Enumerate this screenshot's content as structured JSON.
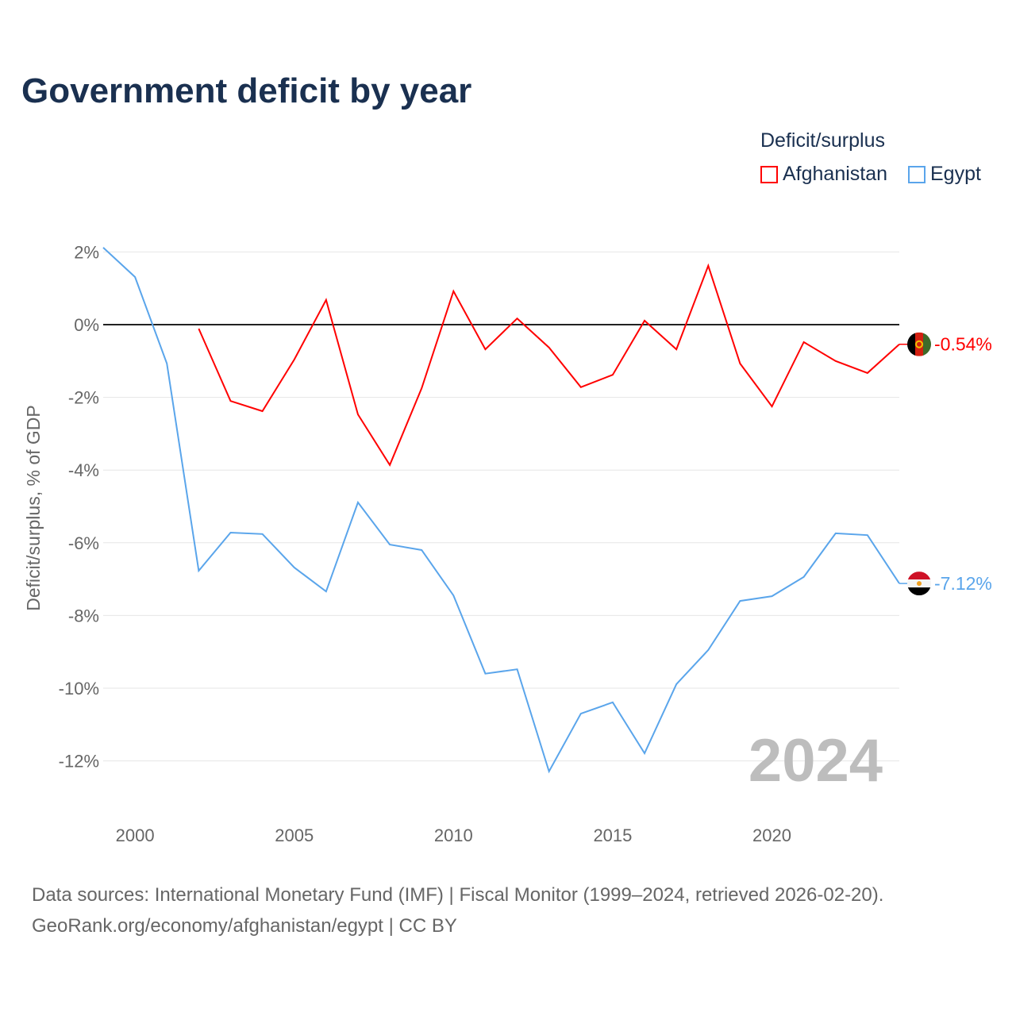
{
  "title": "Government deficit by year",
  "legend": {
    "title": "Deficit/surplus",
    "items": [
      {
        "label": "Afghanistan",
        "color": "#ff0000"
      },
      {
        "label": "Egypt",
        "color": "#5aa5eb"
      }
    ]
  },
  "source": {
    "line1": "Data sources: International Monetary Fund (IMF) | Fiscal Monitor (1999–2024, retrieved 2026-02-20).",
    "line2": "GeoRank.org/economy/afghanistan/egypt | CC BY"
  },
  "chart_data": {
    "type": "line",
    "title": "Government deficit by year",
    "xlabel": "",
    "ylabel": "Deficit/surplus, % of GDP",
    "xlim": [
      1999,
      2024
    ],
    "ylim": [
      -13,
      2.2
    ],
    "yticks": [
      2,
      0,
      -2,
      -4,
      -6,
      -8,
      -10,
      -12
    ],
    "ytick_labels": [
      "2%",
      "0%",
      "-2%",
      "-4%",
      "-6%",
      "-8%",
      "-10%",
      "-12%"
    ],
    "xticks": [
      2000,
      2005,
      2010,
      2015,
      2020
    ],
    "xtick_labels": [
      "2000",
      "2005",
      "2010",
      "2015",
      "2020"
    ],
    "watermark_year": "2024",
    "series": [
      {
        "name": "Afghanistan",
        "color": "#ff0000",
        "end_label": "-0.54%",
        "x": [
          2002,
          2003,
          2004,
          2005,
          2006,
          2007,
          2008,
          2009,
          2010,
          2011,
          2012,
          2013,
          2014,
          2015,
          2016,
          2017,
          2018,
          2019,
          2020,
          2021,
          2022,
          2023,
          2024
        ],
        "values": [
          -0.11,
          -2.1,
          -2.38,
          -0.96,
          0.68,
          -2.47,
          -3.86,
          -1.75,
          0.92,
          -0.68,
          0.17,
          -0.63,
          -1.72,
          -1.38,
          0.11,
          -0.68,
          1.62,
          -1.07,
          -2.25,
          -0.48,
          -1.0,
          -1.33,
          -0.54
        ]
      },
      {
        "name": "Egypt",
        "color": "#5aa5eb",
        "end_label": "-7.12%",
        "x": [
          1999,
          2000,
          2001,
          2002,
          2003,
          2004,
          2005,
          2006,
          2007,
          2008,
          2009,
          2010,
          2011,
          2012,
          2013,
          2014,
          2015,
          2016,
          2017,
          2018,
          2019,
          2020,
          2021,
          2022,
          2023,
          2024
        ],
        "values": [
          2.12,
          1.31,
          -1.07,
          -6.77,
          -5.72,
          -5.76,
          -6.68,
          -7.34,
          -4.89,
          -6.05,
          -6.2,
          -7.45,
          -9.6,
          -9.48,
          -12.29,
          -10.7,
          -10.39,
          -11.79,
          -9.89,
          -8.95,
          -7.6,
          -7.47,
          -6.94,
          -5.74,
          -5.79,
          -7.12
        ]
      }
    ]
  }
}
